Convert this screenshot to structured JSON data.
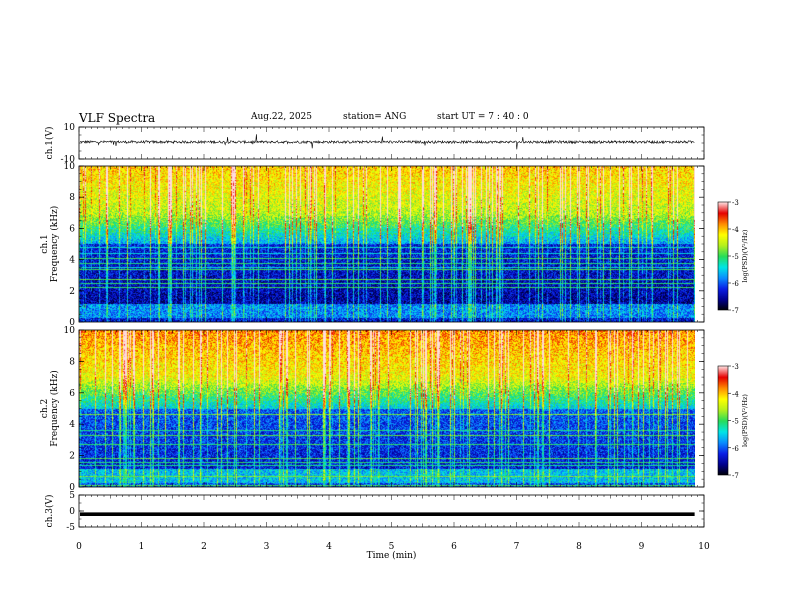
{
  "header": {
    "title": "VLF Spectra",
    "date": "Aug.22, 2025",
    "station": "station= ANG",
    "start": "start  UT  =    7 : 40 : 0"
  },
  "chart_data": [
    {
      "type": "line",
      "name": "ch1-waveform",
      "ylabel": "ch.1(V)",
      "ylim": [
        -10,
        10
      ],
      "yticks": [
        "10",
        "-10"
      ],
      "xlim": [
        0,
        10
      ],
      "trace_xmax": 9.85,
      "baseline": 0
    },
    {
      "type": "heatmap",
      "name": "ch1-spectrogram",
      "ylabel": "ch.1\nFrequency (kHz)",
      "ylim": [
        0,
        10
      ],
      "yticks": [
        "0",
        "2",
        "4",
        "6",
        "8",
        "10"
      ],
      "xlim": [
        0,
        10
      ],
      "data_xmax": 9.85,
      "colorbar": {
        "min": -7,
        "max": -3,
        "ticks": [
          "-3",
          "-4",
          "-5",
          "-6",
          "-7"
        ],
        "label": "log(PSD)(V²/Hz)"
      }
    },
    {
      "type": "heatmap",
      "name": "ch2-spectrogram",
      "ylabel": "ch.2\nFrequency (kHz)",
      "ylim": [
        0,
        10
      ],
      "yticks": [
        "0",
        "2",
        "4",
        "6",
        "8",
        "10"
      ],
      "xlim": [
        0,
        10
      ],
      "data_xmax": 9.85,
      "colorbar": {
        "min": -7,
        "max": -3,
        "ticks": [
          "-3",
          "-4",
          "-5",
          "-6",
          "-7"
        ],
        "label": "log(PSD)(V²/Hz)"
      }
    },
    {
      "type": "line",
      "name": "ch3-waveform",
      "ylabel": "ch.3(V)",
      "ylim": [
        -5,
        5
      ],
      "yticks": [
        "5",
        "0",
        "-5"
      ],
      "xlim": [
        0,
        10
      ],
      "trace_xmax": 9.85,
      "baseline": -1
    }
  ],
  "xaxis": {
    "label": "Time  (min)",
    "ticks": [
      "0",
      "1",
      "2",
      "3",
      "4",
      "5",
      "6",
      "7",
      "8",
      "9",
      "10"
    ]
  },
  "colors": {
    "colormap": [
      "#000000",
      "#00008c",
      "#0a1ee6",
      "#0a8cff",
      "#00e6e6",
      "#28dc5a",
      "#b4f01e",
      "#ffff00",
      "#ff8c00",
      "#e60000",
      "#ffdcdc"
    ]
  }
}
